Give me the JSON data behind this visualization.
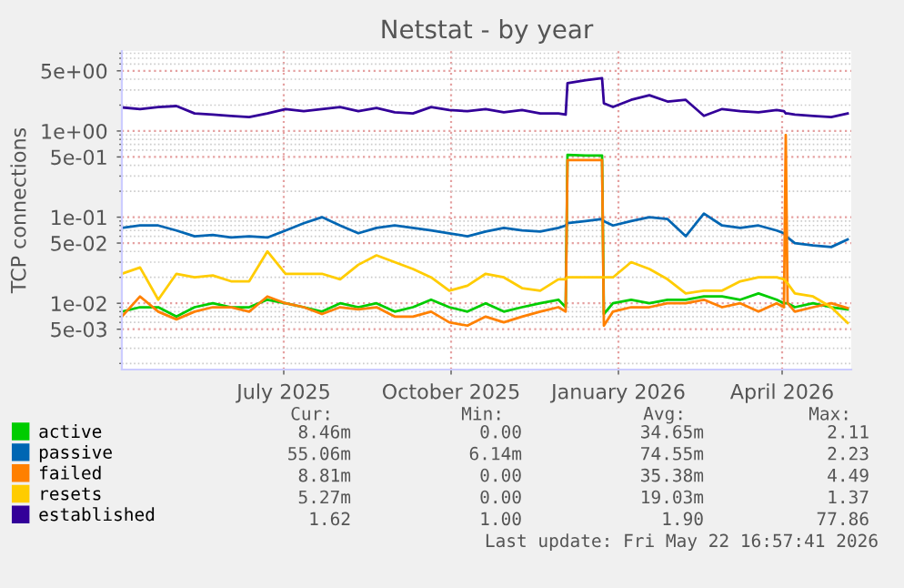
{
  "chart_data": {
    "type": "line",
    "title": "Netstat - by year",
    "ylabel": "TCP connections",
    "x": [
      "2025-04-18",
      "2025-04-28",
      "2025-05-08",
      "2025-05-18",
      "2025-05-28",
      "2025-06-07",
      "2025-06-17",
      "2025-06-27",
      "2025-07-07",
      "2025-07-17",
      "2025-07-27",
      "2025-08-06",
      "2025-08-16",
      "2025-08-26",
      "2025-09-05",
      "2025-09-15",
      "2025-09-25",
      "2025-10-05",
      "2025-10-15",
      "2025-10-25",
      "2025-11-04",
      "2025-11-14",
      "2025-11-24",
      "2025-12-04",
      "2025-12-14",
      "2025-12-18",
      "2025-12-19",
      "2025-12-29",
      "2026-01-07",
      "2026-01-08",
      "2026-01-13",
      "2026-01-23",
      "2026-02-02",
      "2026-02-12",
      "2026-02-22",
      "2026-03-04",
      "2026-03-14",
      "2026-03-24",
      "2026-04-03",
      "2026-04-13",
      "2026-04-17",
      "2026-04-18",
      "2026-04-19",
      "2026-04-23",
      "2026-05-03",
      "2026-05-13",
      "2026-05-22"
    ],
    "series": [
      {
        "name": "active",
        "color": "#00cc00",
        "values": [
          0.008,
          0.009,
          0.009,
          0.007,
          0.009,
          0.01,
          0.009,
          0.009,
          0.011,
          0.01,
          0.009,
          0.008,
          0.01,
          0.009,
          0.01,
          0.008,
          0.009,
          0.011,
          0.009,
          0.008,
          0.01,
          0.008,
          0.009,
          0.01,
          0.011,
          0.009,
          0.53,
          0.52,
          0.52,
          0.0075,
          0.01,
          0.011,
          0.01,
          0.011,
          0.011,
          0.012,
          0.012,
          0.011,
          0.013,
          0.011,
          0.01,
          0.01,
          0.01,
          0.009,
          0.01,
          0.009,
          0.0085
        ]
      },
      {
        "name": "passive",
        "color": "#0066b3",
        "values": [
          0.075,
          0.08,
          0.08,
          0.07,
          0.06,
          0.062,
          0.058,
          0.06,
          0.058,
          0.07,
          0.085,
          0.1,
          0.08,
          0.065,
          0.075,
          0.08,
          0.075,
          0.07,
          0.065,
          0.06,
          0.068,
          0.075,
          0.07,
          0.068,
          0.075,
          0.08,
          0.085,
          0.09,
          0.095,
          0.09,
          0.08,
          0.09,
          0.1,
          0.095,
          0.06,
          0.11,
          0.08,
          0.075,
          0.08,
          0.07,
          0.065,
          0.06,
          0.058,
          0.05,
          0.047,
          0.045,
          0.055
        ]
      },
      {
        "name": "failed",
        "color": "#ff8000",
        "values": [
          0.007,
          0.012,
          0.008,
          0.0065,
          0.008,
          0.009,
          0.009,
          0.008,
          0.012,
          0.01,
          0.009,
          0.0075,
          0.009,
          0.0085,
          0.009,
          0.007,
          0.007,
          0.008,
          0.006,
          0.0055,
          0.007,
          0.006,
          0.007,
          0.008,
          0.009,
          0.008,
          0.46,
          0.46,
          0.46,
          0.0055,
          0.008,
          0.009,
          0.009,
          0.01,
          0.01,
          0.011,
          0.009,
          0.01,
          0.008,
          0.01,
          0.009,
          0.9,
          0.01,
          0.008,
          0.009,
          0.01,
          0.0088
        ]
      },
      {
        "name": "resets",
        "color": "#ffcc00",
        "values": [
          0.022,
          0.026,
          0.011,
          0.022,
          0.02,
          0.021,
          0.018,
          0.018,
          0.04,
          0.022,
          0.022,
          0.022,
          0.019,
          0.028,
          0.036,
          0.03,
          0.025,
          0.02,
          0.014,
          0.016,
          0.022,
          0.02,
          0.015,
          0.014,
          0.019,
          0.019,
          0.02,
          0.02,
          0.02,
          0.02,
          0.02,
          0.03,
          0.025,
          0.019,
          0.013,
          0.014,
          0.014,
          0.018,
          0.02,
          0.02,
          0.019,
          0.018,
          0.017,
          0.013,
          0.012,
          0.009,
          0.0059
        ]
      },
      {
        "name": "established",
        "color": "#330099",
        "values": [
          1.88,
          1.8,
          1.9,
          1.95,
          1.6,
          1.55,
          1.5,
          1.45,
          1.6,
          1.8,
          1.7,
          1.8,
          1.9,
          1.7,
          1.85,
          1.65,
          1.6,
          1.9,
          1.75,
          1.7,
          1.8,
          1.65,
          1.75,
          1.6,
          1.6,
          1.55,
          3.6,
          3.9,
          4.1,
          2.1,
          1.9,
          2.3,
          2.6,
          2.2,
          2.3,
          1.5,
          1.8,
          1.7,
          1.65,
          1.75,
          1.7,
          1.6,
          1.6,
          1.55,
          1.5,
          1.45,
          1.6
        ]
      }
    ],
    "log": "y",
    "ylim": [
      0.0017,
      8.5
    ],
    "yticks": [
      {
        "value": 5,
        "label": "5e+00"
      },
      {
        "value": 1,
        "label": "1e+00"
      },
      {
        "value": 0.5,
        "label": "5e-01"
      },
      {
        "value": 0.1,
        "label": "1e-01"
      },
      {
        "value": 0.05,
        "label": "5e-02"
      },
      {
        "value": 0.01,
        "label": "1e-02"
      },
      {
        "value": 0.005,
        "label": "5e-03"
      }
    ],
    "xlim": [
      "2025-04-18",
      "2026-05-24"
    ],
    "xticks": [
      {
        "value": "2025-07-16",
        "label": "July 2025"
      },
      {
        "value": "2025-10-16",
        "label": "October 2025"
      },
      {
        "value": "2026-01-16",
        "label": "January 2026"
      },
      {
        "value": "2026-04-16",
        "label": "April 2026"
      }
    ],
    "grid": true,
    "legend": "bottom",
    "marker": "none",
    "line_style": "solid",
    "annotations": [
      "Cur:",
      "Min:",
      "Avg:",
      "Max:",
      "8.46m",
      "0.00",
      "34.65m",
      "2.11",
      "55.06m",
      "6.14m",
      "74.55m",
      "2.23",
      "8.81m",
      "0.00",
      "35.38m",
      "4.49",
      "5.27m",
      "0.00",
      "19.03m",
      "1.37",
      "1.62",
      "1.00",
      "1.90",
      "77.86",
      "Last update: Fri May 22 16:57:41 2026"
    ]
  }
}
